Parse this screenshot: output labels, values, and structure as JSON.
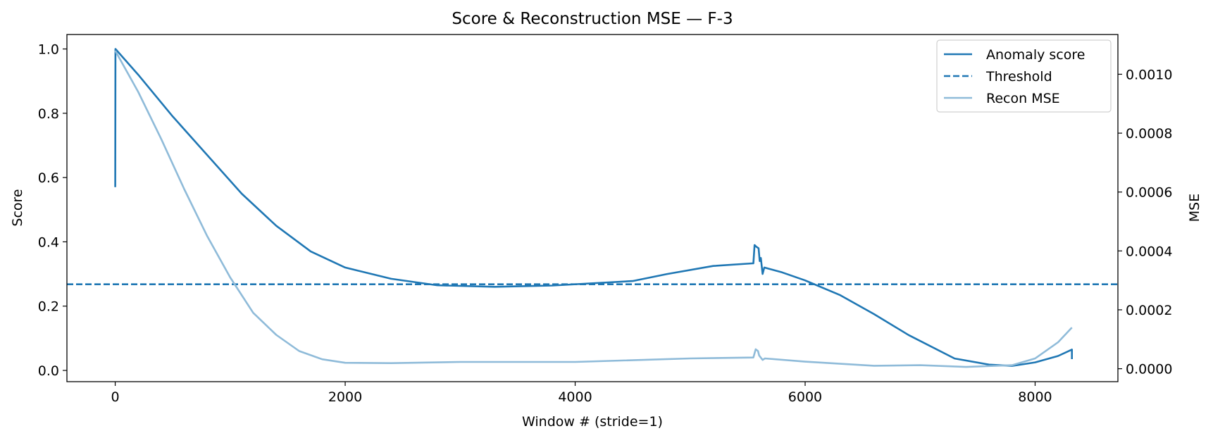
{
  "chart_data": {
    "type": "line",
    "title": "Score & Reconstruction MSE — F-3",
    "xlabel": "Window # (stride=1)",
    "ylabel": "Score",
    "y2label": "MSE",
    "xlim": [
      -420,
      8720
    ],
    "ylim": [
      -0.035,
      1.045
    ],
    "y2lim": [
      -4.4e-05,
      0.001135
    ],
    "x_ticks": [
      0,
      2000,
      4000,
      6000,
      8000
    ],
    "x_tick_labels": [
      "0",
      "2000",
      "4000",
      "6000",
      "8000"
    ],
    "y_ticks": [
      0.0,
      0.2,
      0.4,
      0.6,
      0.8,
      1.0
    ],
    "y_tick_labels": [
      "0.0",
      "0.2",
      "0.4",
      "0.6",
      "0.8",
      "1.0"
    ],
    "y2_ticks": [
      0.0,
      0.0002,
      0.0004,
      0.0006,
      0.0008,
      0.001
    ],
    "y2_tick_labels": [
      "0.0000",
      "0.0002",
      "0.0004",
      "0.0006",
      "0.0008",
      "0.0010"
    ],
    "grid": false,
    "legend_position": "top-right",
    "series": [
      {
        "name": "Anomaly score",
        "axis": "left",
        "style": "solid",
        "color": "#1f77b4",
        "points": [
          [
            0,
            0.57
          ],
          [
            2,
            1.0
          ],
          [
            200,
            0.92
          ],
          [
            500,
            0.79
          ],
          [
            800,
            0.67
          ],
          [
            1100,
            0.55
          ],
          [
            1400,
            0.45
          ],
          [
            1700,
            0.37
          ],
          [
            2000,
            0.32
          ],
          [
            2400,
            0.285
          ],
          [
            2800,
            0.265
          ],
          [
            3300,
            0.26
          ],
          [
            3800,
            0.264
          ],
          [
            4500,
            0.278
          ],
          [
            4800,
            0.3
          ],
          [
            5200,
            0.325
          ],
          [
            5540,
            0.333
          ],
          [
            5550,
            0.333
          ],
          [
            5560,
            0.39
          ],
          [
            5575,
            0.385
          ],
          [
            5595,
            0.38
          ],
          [
            5605,
            0.34
          ],
          [
            5615,
            0.35
          ],
          [
            5630,
            0.3
          ],
          [
            5645,
            0.32
          ],
          [
            5800,
            0.305
          ],
          [
            6000,
            0.28
          ],
          [
            6300,
            0.235
          ],
          [
            6600,
            0.175
          ],
          [
            6900,
            0.11
          ],
          [
            7300,
            0.037
          ],
          [
            7600,
            0.018
          ],
          [
            7800,
            0.014
          ],
          [
            8000,
            0.025
          ],
          [
            8200,
            0.045
          ],
          [
            8320,
            0.065
          ],
          [
            8320,
            0.035
          ]
        ]
      },
      {
        "name": "Threshold",
        "axis": "left",
        "style": "dashed",
        "color": "#1f77b4",
        "points": [
          [
            -420,
            0.268
          ],
          [
            8720,
            0.268
          ]
        ]
      },
      {
        "name": "Recon MSE",
        "axis": "right",
        "style": "solid",
        "color": "#8fbbd9",
        "points": [
          [
            0,
            0.00108
          ],
          [
            200,
            0.00094
          ],
          [
            400,
            0.00078
          ],
          [
            600,
            0.00061
          ],
          [
            800,
            0.00045
          ],
          [
            1000,
            0.00031
          ],
          [
            1200,
            0.00019
          ],
          [
            1400,
            0.000115
          ],
          [
            1600,
            6e-05
          ],
          [
            1800,
            3.2e-05
          ],
          [
            2000,
            2e-05
          ],
          [
            2400,
            1.9e-05
          ],
          [
            3000,
            2.3e-05
          ],
          [
            4000,
            2.3e-05
          ],
          [
            5000,
            3.5e-05
          ],
          [
            5550,
            3.8e-05
          ],
          [
            5570,
            6.6e-05
          ],
          [
            5590,
            6e-05
          ],
          [
            5600,
            4.5e-05
          ],
          [
            5630,
            3e-05
          ],
          [
            5650,
            3.5e-05
          ],
          [
            6000,
            2.4e-05
          ],
          [
            6600,
            1e-05
          ],
          [
            7000,
            1.2e-05
          ],
          [
            7400,
            6e-06
          ],
          [
            7800,
            1.2e-05
          ],
          [
            8000,
            3.5e-05
          ],
          [
            8200,
            9e-05
          ],
          [
            8320,
            0.00014
          ]
        ]
      }
    ]
  }
}
